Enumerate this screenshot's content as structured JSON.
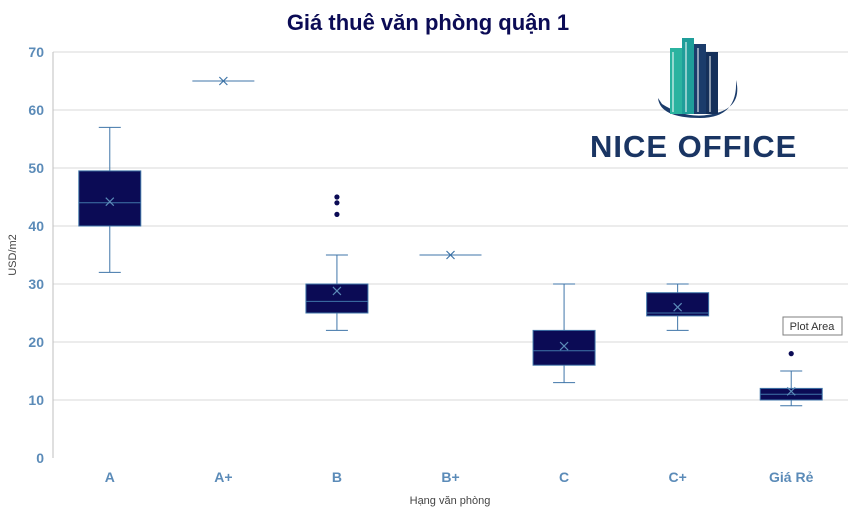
{
  "chart_data": {
    "type": "box",
    "title": "Giá thuê văn phòng quận 1",
    "xlabel": "Hạng văn phòng",
    "ylabel": "USD/m2",
    "ylim": [
      0,
      70
    ],
    "yticks": [
      "0",
      "10",
      "20",
      "30",
      "40",
      "50",
      "60",
      "70"
    ],
    "grid": true,
    "categories": [
      "A",
      "A+",
      "B",
      "B+",
      "C",
      "C+",
      "Giá Rẻ"
    ],
    "boxes": [
      {
        "category": "A",
        "min": 32,
        "q1": 40,
        "median": 44,
        "q3": 49.5,
        "max": 57,
        "mean": 44.2,
        "outliers": []
      },
      {
        "category": "A+",
        "min": 65,
        "q1": 65,
        "median": 65,
        "q3": 65,
        "max": 65,
        "mean": 65,
        "outliers": []
      },
      {
        "category": "B",
        "min": 22,
        "q1": 25,
        "median": 27,
        "q3": 30,
        "max": 35,
        "mean": 28.8,
        "outliers": [
          42,
          44,
          45
        ]
      },
      {
        "category": "B+",
        "min": 35,
        "q1": 35,
        "median": 35,
        "q3": 35,
        "max": 35,
        "mean": 35,
        "outliers": []
      },
      {
        "category": "C",
        "min": 13,
        "q1": 16,
        "median": 18.5,
        "q3": 22,
        "max": 30,
        "mean": 19.3,
        "outliers": []
      },
      {
        "category": "C+",
        "min": 22,
        "q1": 24.5,
        "median": 25,
        "q3": 28.5,
        "max": 30,
        "mean": 26,
        "outliers": []
      },
      {
        "category": "Giá Rẻ",
        "min": 9,
        "q1": 10,
        "median": 11,
        "q3": 12,
        "max": 15,
        "mean": 11.5,
        "outliers": [
          18
        ]
      }
    ]
  },
  "colors": {
    "box_fill": "#0b0b55",
    "line": "#3f75a8",
    "tick_text": "#5b8bb8",
    "title": "#0b0b55",
    "grid": "#d9d9d9"
  },
  "logo": {
    "text": "NICE OFFICE",
    "icon": "building-icon"
  },
  "tooltip": {
    "text": "Plot Area"
  }
}
